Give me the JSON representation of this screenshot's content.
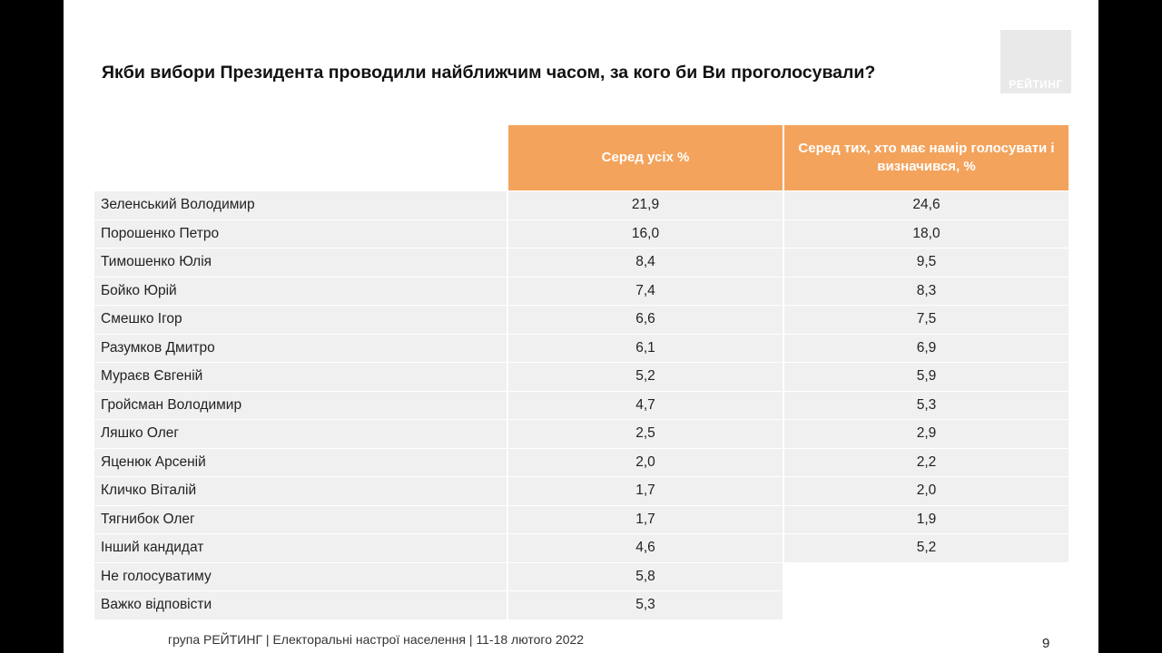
{
  "slide": {
    "title": "Якби вибори Президента проводили найближчим часом, за кого би Ви проголосували?",
    "logo_text": "РЕЙТИНГ",
    "footer": "група РЕЙТИНГ | Електоральні настрої населення | 11-18 лютого 2022",
    "page_number": "9"
  },
  "table": {
    "headers": [
      "",
      "Серед усіх %",
      "Серед тих, хто має намір голосувати і визначився, %"
    ],
    "rows": [
      {
        "name": "Зеленський Володимир",
        "all": "21,9",
        "decided": "24,6"
      },
      {
        "name": "Порошенко Петро",
        "all": "16,0",
        "decided": "18,0"
      },
      {
        "name": "Тимошенко Юлія",
        "all": "8,4",
        "decided": "9,5"
      },
      {
        "name": "Бойко Юрій",
        "all": "7,4",
        "decided": "8,3"
      },
      {
        "name": "Смешко Ігор",
        "all": "6,6",
        "decided": "7,5"
      },
      {
        "name": "Разумков Дмитро",
        "all": "6,1",
        "decided": "6,9"
      },
      {
        "name": "Мураєв Євгеній",
        "all": "5,2",
        "decided": "5,9"
      },
      {
        "name": "Гройсман Володимир",
        "all": "4,7",
        "decided": "5,3"
      },
      {
        "name": "Ляшко Олег",
        "all": "2,5",
        "decided": "2,9"
      },
      {
        "name": "Яценюк Арсеній",
        "all": "2,0",
        "decided": "2,2"
      },
      {
        "name": "Кличко Віталій",
        "all": "1,7",
        "decided": "2,0"
      },
      {
        "name": "Тягнибок Олег",
        "all": "1,7",
        "decided": "1,9"
      },
      {
        "name": "Інший кандидат",
        "all": "4,6",
        "decided": "5,2"
      },
      {
        "name": "Не голосуватиму",
        "all": "5,8",
        "decided": ""
      },
      {
        "name": "Важко відповісти",
        "all": "5,3",
        "decided": ""
      }
    ]
  },
  "colors": {
    "header_bg": "#f4a35c",
    "row_bg": "#f0f0f0",
    "slide_bg": "#ffffff",
    "frame_bg": "#000000"
  }
}
